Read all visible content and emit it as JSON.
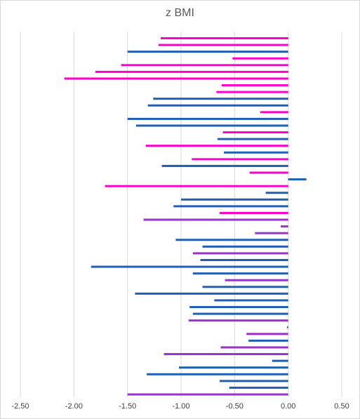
{
  "chart_data": {
    "type": "bar",
    "orientation": "horizontal",
    "title": "z BMI",
    "xlabel": "",
    "ylabel": "",
    "xlim": [
      -2.5,
      0.5
    ],
    "xticks": [
      -2.5,
      -2.0,
      -1.5,
      -1.0,
      -0.5,
      0.0,
      0.5
    ],
    "xtick_labels": [
      "-2.50",
      "-2.00",
      "-1.50",
      "-1.00",
      "-0.50",
      "0.00",
      "0.50"
    ],
    "grid": "vertical",
    "colors": {
      "magenta": "#ff00cc",
      "blue": "#1f5fb4",
      "purple": "#9933cc"
    },
    "bars": [
      {
        "value": -1.19,
        "color": "magenta"
      },
      {
        "value": -1.21,
        "color": "magenta"
      },
      {
        "value": -1.5,
        "color": "blue"
      },
      {
        "value": -0.52,
        "color": "magenta"
      },
      {
        "value": -1.56,
        "color": "magenta"
      },
      {
        "value": -1.8,
        "color": "magenta"
      },
      {
        "value": -2.09,
        "color": "magenta"
      },
      {
        "value": -0.62,
        "color": "magenta"
      },
      {
        "value": -0.67,
        "color": "magenta"
      },
      {
        "value": -1.26,
        "color": "blue"
      },
      {
        "value": -1.31,
        "color": "blue"
      },
      {
        "value": -0.26,
        "color": "magenta"
      },
      {
        "value": -1.5,
        "color": "blue"
      },
      {
        "value": -1.42,
        "color": "blue"
      },
      {
        "value": -0.61,
        "color": "magenta"
      },
      {
        "value": -0.66,
        "color": "blue"
      },
      {
        "value": -1.33,
        "color": "magenta"
      },
      {
        "value": -0.6,
        "color": "blue"
      },
      {
        "value": -0.9,
        "color": "magenta"
      },
      {
        "value": -1.18,
        "color": "blue"
      },
      {
        "value": -0.36,
        "color": "magenta"
      },
      {
        "value": 0.17,
        "color": "blue"
      },
      {
        "value": -1.71,
        "color": "magenta"
      },
      {
        "value": -0.21,
        "color": "blue"
      },
      {
        "value": -1.0,
        "color": "blue"
      },
      {
        "value": -1.07,
        "color": "blue"
      },
      {
        "value": -0.64,
        "color": "magenta"
      },
      {
        "value": -1.35,
        "color": "purple"
      },
      {
        "value": -0.07,
        "color": "purple"
      },
      {
        "value": -0.31,
        "color": "purple"
      },
      {
        "value": -1.05,
        "color": "blue"
      },
      {
        "value": -0.8,
        "color": "blue"
      },
      {
        "value": -0.89,
        "color": "purple"
      },
      {
        "value": -0.82,
        "color": "blue"
      },
      {
        "value": -1.84,
        "color": "blue"
      },
      {
        "value": -0.89,
        "color": "blue"
      },
      {
        "value": -0.59,
        "color": "purple"
      },
      {
        "value": -0.8,
        "color": "blue"
      },
      {
        "value": -1.43,
        "color": "blue"
      },
      {
        "value": -0.69,
        "color": "blue"
      },
      {
        "value": -0.92,
        "color": "blue"
      },
      {
        "value": -0.89,
        "color": "blue"
      },
      {
        "value": -0.93,
        "color": "purple"
      },
      {
        "value": -0.01,
        "color": "blue"
      },
      {
        "value": -0.39,
        "color": "purple"
      },
      {
        "value": -0.37,
        "color": "blue"
      },
      {
        "value": -0.63,
        "color": "purple"
      },
      {
        "value": -1.16,
        "color": "purple"
      },
      {
        "value": -0.15,
        "color": "blue"
      },
      {
        "value": -1.02,
        "color": "blue"
      },
      {
        "value": -1.32,
        "color": "blue"
      },
      {
        "value": -0.64,
        "color": "blue"
      },
      {
        "value": -0.55,
        "color": "blue"
      },
      {
        "value": -1.5,
        "color": "purple"
      }
    ]
  }
}
